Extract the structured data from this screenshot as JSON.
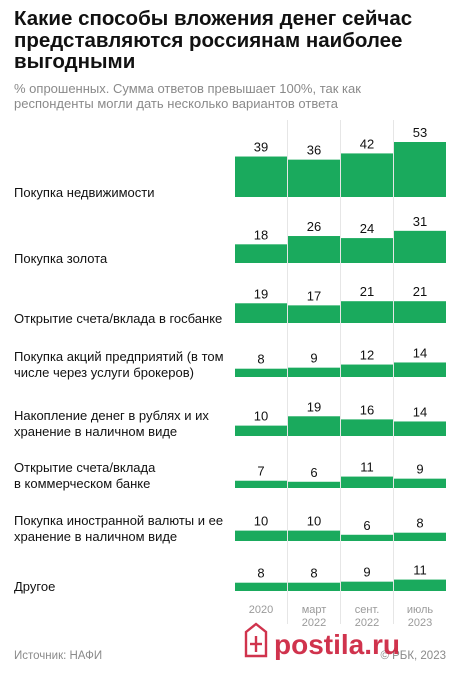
{
  "header": {
    "title": "Какие способы вложения денег сейчас представляются россиянам наиболее выгодными",
    "subtitle": "% опрошенных. Сумма ответов превышает 100%, так как респонденты могли дать несколько вариантов ответа"
  },
  "footer": {
    "source": "Источник: НАФИ",
    "copyright": "© РБК, 2023"
  },
  "colors": {
    "bar": "#1aaa5d",
    "divider": "#e6e6e6",
    "watermark": "#c8102e"
  },
  "watermark": {
    "logo_text": "postila.ru",
    "icon_name": "postila-watermark-icon"
  },
  "chart_data": {
    "type": "bar",
    "orientation": "grouped-columns-per-row",
    "periods": [
      "2020",
      "март 2022",
      "сент. 2022",
      "июль 2023"
    ],
    "period_labels": [
      {
        "line1": "2020",
        "line2": ""
      },
      {
        "line1": "март",
        "line2": "2022"
      },
      {
        "line1": "сент.",
        "line2": "2022"
      },
      {
        "line1": "июль",
        "line2": "2023"
      }
    ],
    "categories": [
      {
        "label_lines": [
          "Покупка недвижимости"
        ],
        "values": [
          39,
          36,
          42,
          53
        ]
      },
      {
        "label_lines": [
          "Покупка золота"
        ],
        "values": [
          18,
          26,
          24,
          31
        ]
      },
      {
        "label_lines": [
          "Открытие счета/вклада в госбанке"
        ],
        "values": [
          19,
          17,
          21,
          21
        ]
      },
      {
        "label_lines": [
          "Покупка акций предприятий (в том",
          "числе через услуги брокеров)"
        ],
        "values": [
          8,
          9,
          12,
          14
        ]
      },
      {
        "label_lines": [
          "Накопление денег в рублях и их",
          "хранение в наличном виде"
        ],
        "values": [
          10,
          19,
          16,
          14
        ]
      },
      {
        "label_lines": [
          "Открытие счета/вклада",
          "в коммерческом банке"
        ],
        "values": [
          7,
          6,
          11,
          9
        ]
      },
      {
        "label_lines": [
          "Покупка иностранной валюты и ее",
          "хранение в наличном виде"
        ],
        "values": [
          10,
          10,
          6,
          8
        ]
      },
      {
        "label_lines": [
          "Другое"
        ],
        "values": [
          8,
          8,
          9,
          11
        ]
      }
    ]
  }
}
